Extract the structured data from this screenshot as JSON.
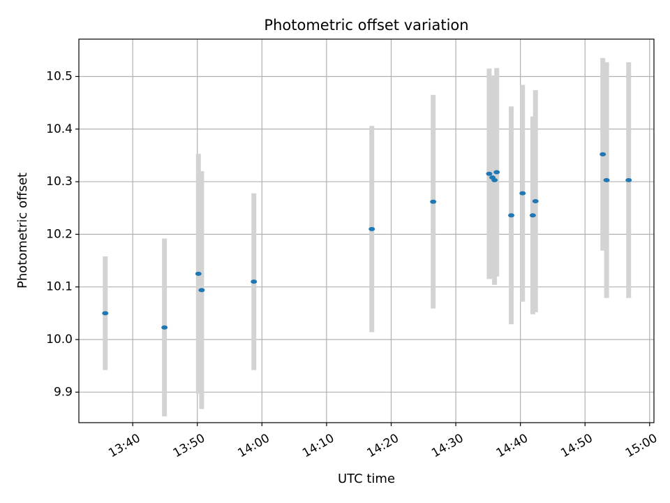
{
  "chart_data": {
    "type": "scatter",
    "title": "Photometric offset variation",
    "xlabel": "UTC time",
    "ylabel": "Photometric offset",
    "x_axis_type": "time",
    "xlim": [
      "13:31:40",
      "15:00:40"
    ],
    "ylim": [
      9.842,
      10.571
    ],
    "x_ticks": [
      "13:40",
      "13:50",
      "14:00",
      "14:10",
      "14:20",
      "14:30",
      "14:40",
      "14:50",
      "15:00"
    ],
    "y_ticks": [
      9.9,
      10.0,
      10.1,
      10.2,
      10.3,
      10.4,
      10.5
    ],
    "y_tick_labels": [
      "9.9",
      "10.0",
      "10.1",
      "10.2",
      "10.3",
      "10.4",
      "10.5"
    ],
    "grid": true,
    "legend": "none",
    "colors": {
      "point": "#1f77b4",
      "errorbar": "#d3d3d3",
      "grid": "#b0b0b0"
    },
    "points": [
      {
        "time": "13:35:45",
        "y": 10.05,
        "err_low": 9.942,
        "err_high": 10.158
      },
      {
        "time": "13:44:55",
        "y": 10.023,
        "err_low": 9.854,
        "err_high": 10.192
      },
      {
        "time": "13:50:10",
        "y": 10.125,
        "err_low": 9.897,
        "err_high": 10.353
      },
      {
        "time": "13:50:40",
        "y": 10.094,
        "err_low": 9.868,
        "err_high": 10.32
      },
      {
        "time": "13:58:45",
        "y": 10.11,
        "err_low": 9.942,
        "err_high": 10.278
      },
      {
        "time": "14:17:00",
        "y": 10.21,
        "err_low": 10.014,
        "err_high": 10.406
      },
      {
        "time": "14:26:30",
        "y": 10.262,
        "err_low": 10.059,
        "err_high": 10.465
      },
      {
        "time": "14:35:10",
        "y": 10.315,
        "err_low": 10.115,
        "err_high": 10.515
      },
      {
        "time": "14:35:40",
        "y": 10.308,
        "err_low": 10.115,
        "err_high": 10.501
      },
      {
        "time": "14:36:00",
        "y": 10.303,
        "err_low": 10.104,
        "err_high": 10.502
      },
      {
        "time": "14:36:20",
        "y": 10.318,
        "err_low": 10.12,
        "err_high": 10.516
      },
      {
        "time": "14:38:35",
        "y": 10.236,
        "err_low": 10.029,
        "err_high": 10.443
      },
      {
        "time": "14:40:20",
        "y": 10.278,
        "err_low": 10.072,
        "err_high": 10.484
      },
      {
        "time": "14:41:55",
        "y": 10.236,
        "err_low": 10.048,
        "err_high": 10.424
      },
      {
        "time": "14:42:20",
        "y": 10.263,
        "err_low": 10.052,
        "err_high": 10.474
      },
      {
        "time": "14:52:45",
        "y": 10.352,
        "err_low": 10.169,
        "err_high": 10.535
      },
      {
        "time": "14:53:20",
        "y": 10.303,
        "err_low": 10.079,
        "err_high": 10.527
      },
      {
        "time": "14:56:45",
        "y": 10.303,
        "err_low": 10.079,
        "err_high": 10.527
      }
    ]
  }
}
